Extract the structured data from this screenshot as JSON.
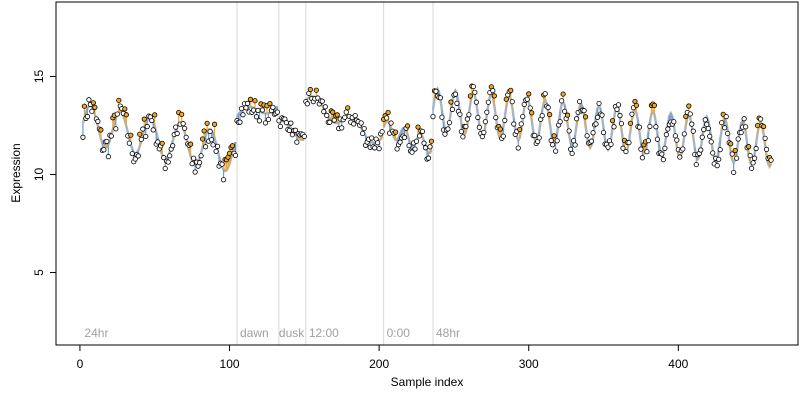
{
  "chart_data": {
    "type": "scatter",
    "xlabel": "Sample index",
    "ylabel": "Expression",
    "xlim": [
      -16,
      480
    ],
    "ylim": [
      1.3,
      18.8
    ],
    "x_ticks": [
      0,
      100,
      200,
      300,
      400
    ],
    "y_ticks": [
      5,
      10,
      15
    ],
    "grid": false,
    "legend": "none",
    "phase_markers": [
      {
        "x": 105,
        "label": ""
      },
      {
        "x": 133,
        "label": ""
      },
      {
        "x": 151,
        "label": ""
      },
      {
        "x": 203,
        "label": ""
      },
      {
        "x": 236,
        "label": ""
      }
    ],
    "phase_labels": [
      {
        "x": 3,
        "label": "24hr"
      },
      {
        "x": 107,
        "label": "dawn"
      },
      {
        "x": 133,
        "label": "dusk"
      },
      {
        "x": 153,
        "label": "12:00"
      },
      {
        "x": 205,
        "label": "0:00"
      },
      {
        "x": 238,
        "label": "48hr"
      }
    ],
    "segments": [
      {
        "x0": 2,
        "x1": 104,
        "base": 12.6,
        "amp": 1.0,
        "period": 20,
        "slope": -0.015,
        "noise": 0.7
      },
      {
        "x0": 105,
        "x1": 132,
        "base": 13.0,
        "amp": 0.3,
        "period": 28,
        "slope": 0.02,
        "noise": 0.5
      },
      {
        "x0": 133,
        "x1": 150,
        "base": 12.7,
        "amp": 0.2,
        "period": 18,
        "slope": -0.05,
        "noise": 0.3
      },
      {
        "x0": 151,
        "x1": 202,
        "base": 13.8,
        "amp": 0.4,
        "period": 25,
        "slope": -0.04,
        "noise": 0.5
      },
      {
        "x0": 203,
        "x1": 235,
        "base": 12.4,
        "amp": 0.4,
        "period": 11,
        "slope": -0.03,
        "noise": 0.5
      },
      {
        "x0": 236,
        "x1": 462,
        "base": 13.3,
        "amp": 1.1,
        "period": 12,
        "slope": -0.008,
        "noise": 0.5
      }
    ],
    "colors": {
      "points_fill": "#ffffff",
      "points_above": "#f5a623",
      "points_stroke": "#000000",
      "stem_up": "#f5a623",
      "stem_down": "#6f9bd1",
      "fit_line": "#a9b4c2",
      "phase_line": "#d9d9d9",
      "axis": "#000000"
    }
  }
}
